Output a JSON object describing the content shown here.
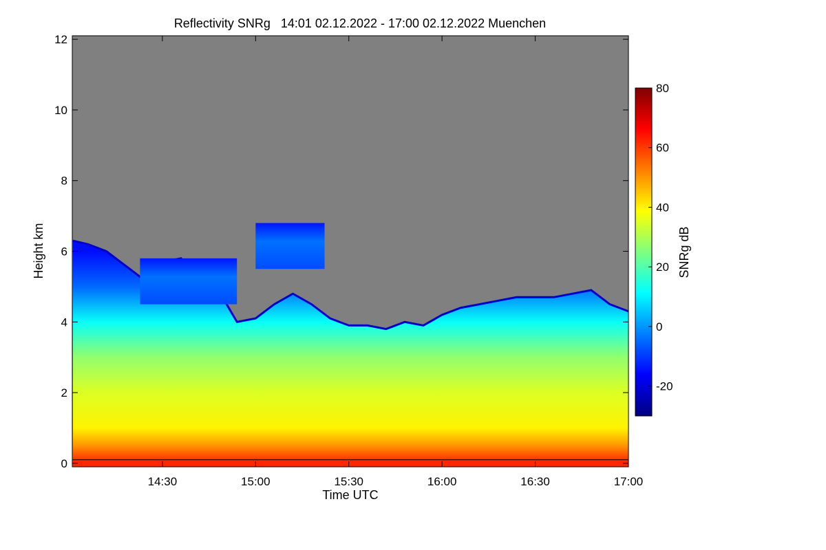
{
  "chart_data": {
    "type": "heatmap",
    "title": "Reflectivity SNRg   14:01 02.12.2022 - 17:00 02.12.2022 Muenchen",
    "xlabel": "Time UTC",
    "ylabel": "Height km",
    "x_range_hours": [
      14.0167,
      17.0
    ],
    "y_range_km": [
      -0.1,
      12.1
    ],
    "x_ticks": [
      {
        "value": 14.5,
        "label": "14:30"
      },
      {
        "value": 15.0,
        "label": "15:00"
      },
      {
        "value": 15.5,
        "label": "15:30"
      },
      {
        "value": 16.0,
        "label": "16:00"
      },
      {
        "value": 16.5,
        "label": "16:30"
      },
      {
        "value": 17.0,
        "label": "17:00"
      }
    ],
    "y_ticks": [
      0,
      2,
      4,
      6,
      8,
      10,
      12
    ],
    "colorbar": {
      "label": "SNRg dB",
      "range": [
        -30,
        80
      ],
      "ticks": [
        -20,
        0,
        20,
        40,
        60,
        80
      ]
    },
    "no_signal_color": "#808080",
    "colormap": [
      "#00007f",
      "#0000ff",
      "#007fff",
      "#00ffff",
      "#7fff7f",
      "#ffff00",
      "#ff7f00",
      "#ff0000",
      "#7f0000"
    ],
    "cloud_top_km": {
      "x": [
        14.02,
        14.1,
        14.2,
        14.3,
        14.4,
        14.5,
        14.6,
        14.7,
        14.8,
        14.9,
        15.0,
        15.1,
        15.2,
        15.3,
        15.4,
        15.5,
        15.6,
        15.7,
        15.8,
        15.9,
        16.0,
        16.1,
        16.2,
        16.3,
        16.4,
        16.5,
        16.6,
        16.7,
        16.8,
        16.9,
        17.0
      ],
      "y": [
        6.3,
        6.2,
        6.0,
        5.6,
        5.2,
        5.7,
        5.8,
        5.0,
        4.9,
        4.0,
        4.1,
        4.5,
        4.8,
        4.5,
        4.1,
        3.9,
        3.9,
        3.8,
        4.0,
        3.9,
        4.2,
        4.4,
        4.5,
        4.6,
        4.7,
        4.7,
        4.7,
        4.8,
        4.9,
        4.5,
        4.3
      ]
    },
    "upper_layer_km": {
      "x": [
        14.38,
        14.9
      ],
      "bottom": 4.5,
      "top": 5.8
    },
    "isolated_cloud_km": {
      "x": [
        15.0,
        15.37
      ],
      "bottom": 5.5,
      "top": 6.8
    },
    "snr_profile": {
      "height_km": [
        0.05,
        0.5,
        1.0,
        2.0,
        3.0,
        4.0,
        5.0,
        6.0
      ],
      "snr_db": [
        62,
        50,
        40,
        35,
        27,
        12,
        -5,
        -15
      ]
    },
    "surface_line_km": 0.1
  }
}
